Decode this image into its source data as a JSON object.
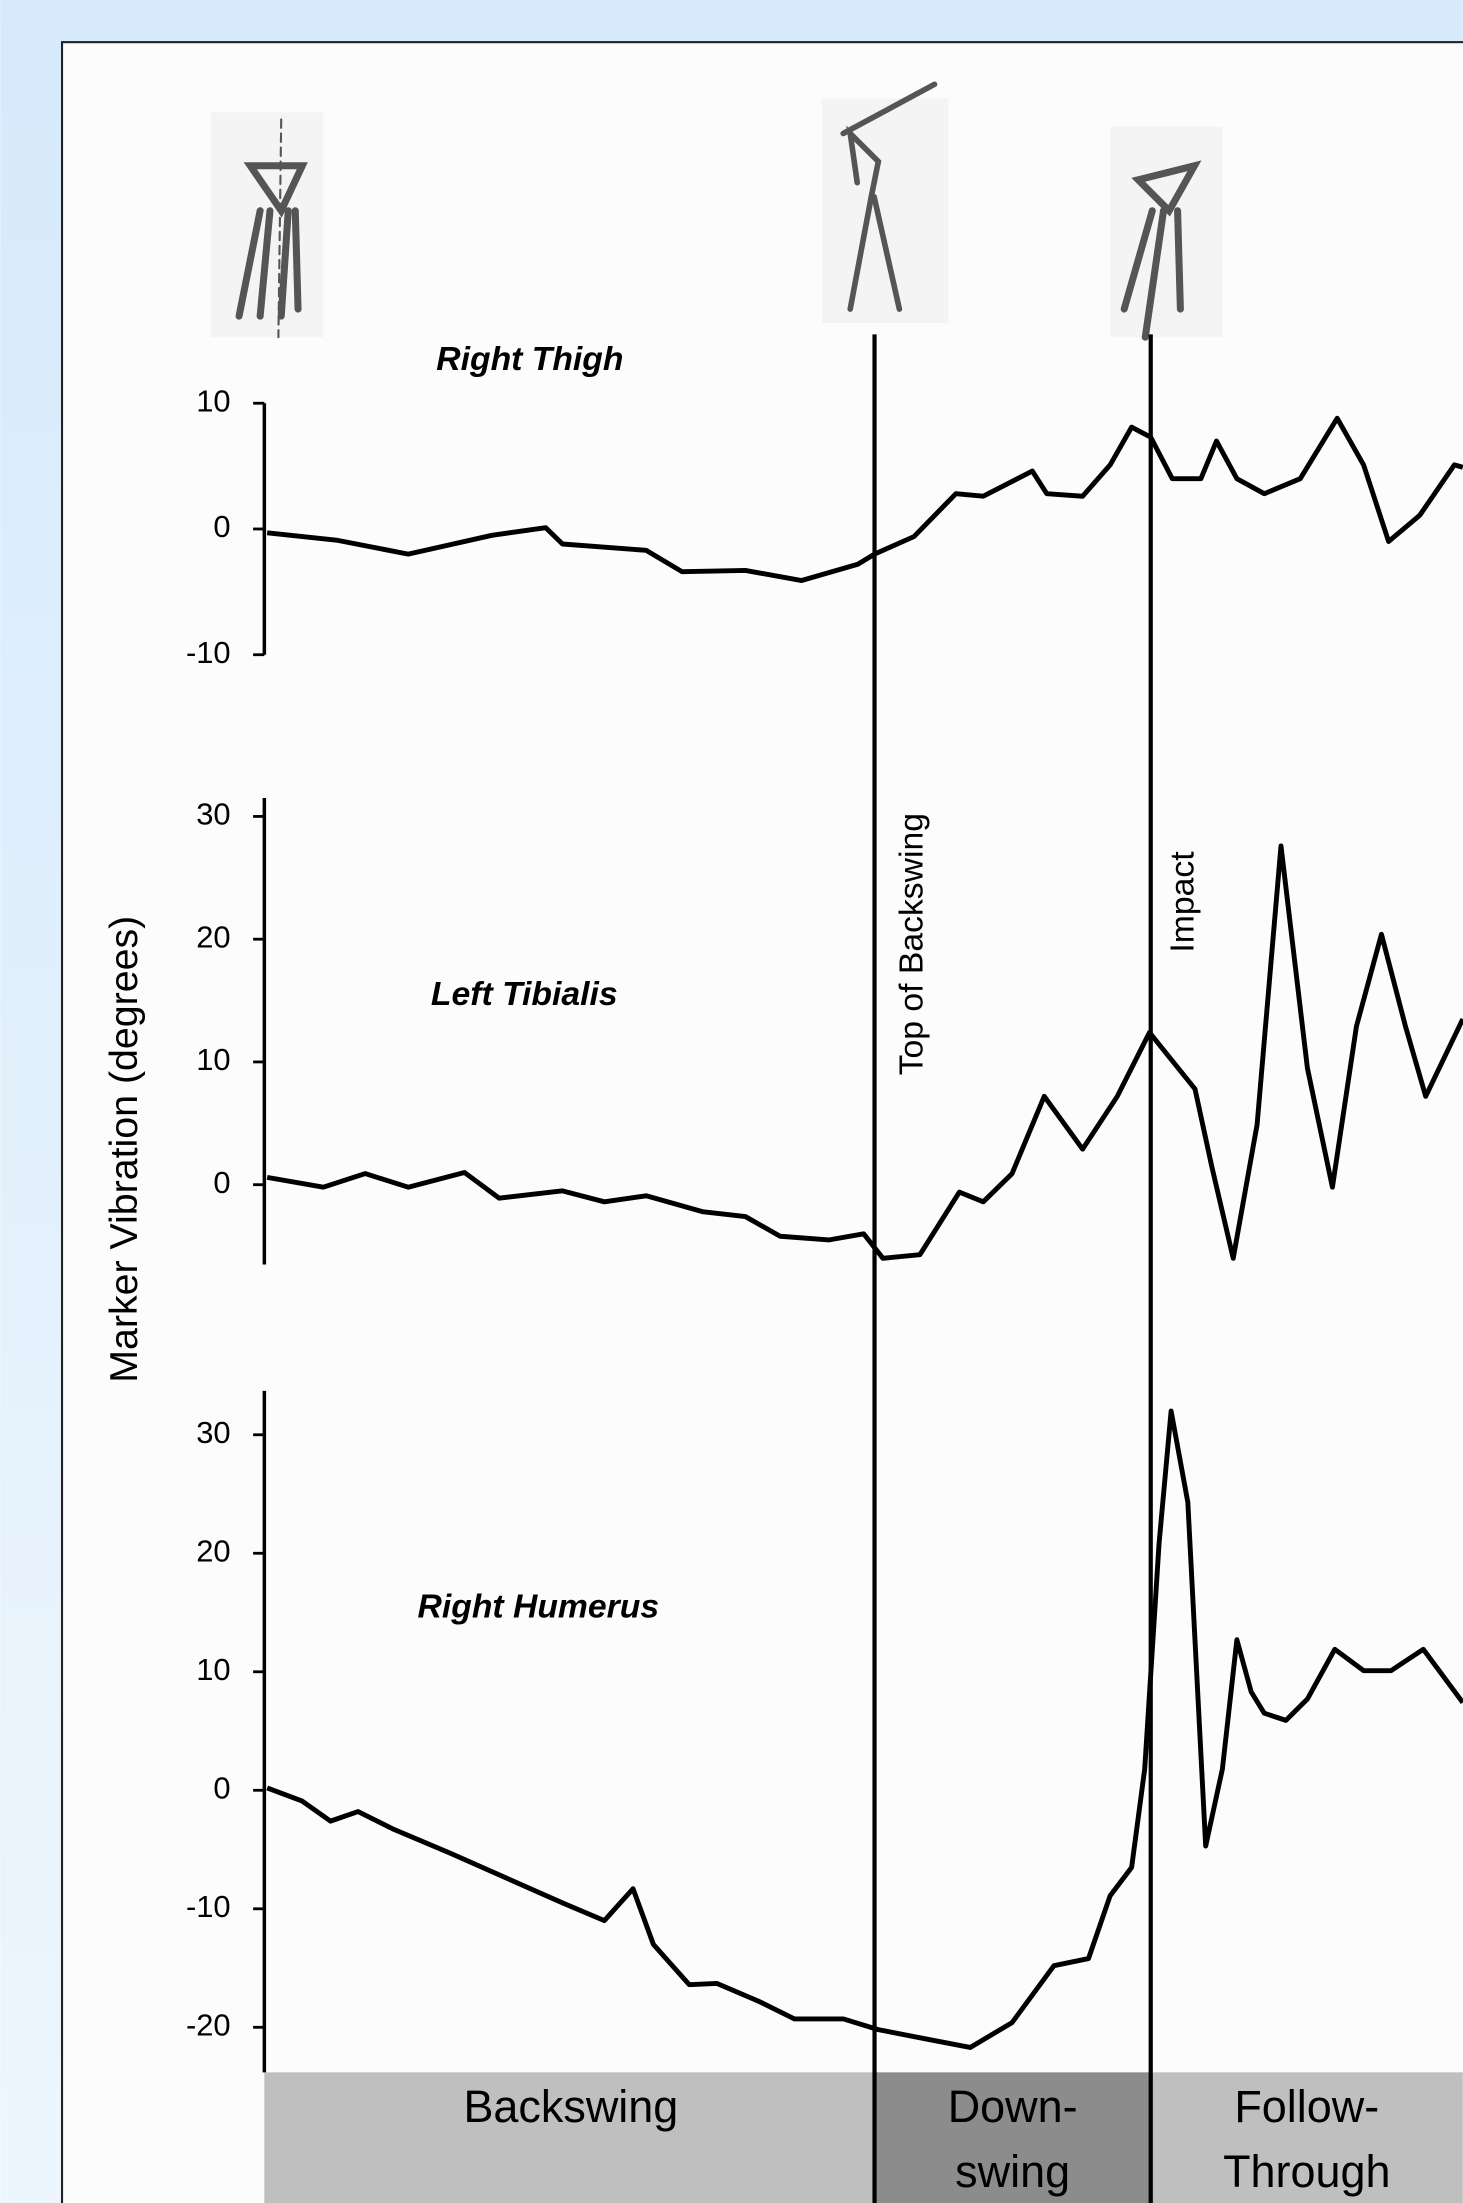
{
  "y_axis_label": "Marker Vibration (degrees)",
  "timeline": {
    "xlim": [
      0,
      100
    ],
    "markers": [
      {
        "text": "Top of Backswing",
        "x": 50.8
      },
      {
        "text": "Impact",
        "x": 73.9
      }
    ],
    "phases": [
      {
        "lines": [
          "Backswing"
        ],
        "start": 0,
        "end": 50.8,
        "color": "#bfbfbf"
      },
      {
        "lines": [
          "Down-",
          "swing"
        ],
        "start": 50.8,
        "end": 73.9,
        "color": "#8c8c8c"
      },
      {
        "lines": [
          "Follow-",
          "Through"
        ],
        "start": 73.9,
        "end": 100,
        "color": "#bfbfbf"
      }
    ]
  },
  "chart_data": [
    {
      "type": "line",
      "title": "Right Thigh",
      "color": "#000000",
      "xlim": [
        0,
        100
      ],
      "ylim": [
        -10,
        10
      ],
      "yticks": [
        -10,
        0,
        10
      ],
      "x": [
        0,
        5.9,
        11.8,
        18.8,
        23.3,
        24.7,
        31.7,
        34.7,
        40,
        44.7,
        49.4,
        50.8,
        54.1,
        57.6,
        59.9,
        64,
        65.2,
        68.2,
        70.5,
        72.3,
        73.9,
        75.7,
        78.1,
        79.4,
        81.1,
        83.4,
        86.4,
        89.5,
        91.7,
        93.8,
        96.4,
        99.3,
        100
      ],
      "values": [
        -0.3,
        -0.9,
        -2,
        -0.5,
        0.1,
        -1.2,
        -1.7,
        -3.4,
        -3.3,
        -4.1,
        -2.8,
        -2,
        -0.6,
        2.8,
        2.6,
        4.6,
        2.8,
        2.6,
        5.1,
        8.1,
        7.3,
        4,
        4,
        7,
        4,
        2.8,
        4,
        8.8,
        5.1,
        -1,
        1.1,
        5.1,
        4.9
      ]
    },
    {
      "type": "line",
      "title": "Left Tibialis",
      "color": "#000000",
      "xlim": [
        0,
        100
      ],
      "ylim": [
        -6.5,
        31.5
      ],
      "yticks": [
        0,
        10,
        20,
        30
      ],
      "x": [
        0,
        4.7,
        8.2,
        11.8,
        16.5,
        19.4,
        24.7,
        28.2,
        31.7,
        36.4,
        40,
        42.9,
        47,
        49.9,
        51.5,
        54.6,
        57.9,
        59.9,
        62.3,
        65,
        68.2,
        71.1,
        73.8,
        77.6,
        79,
        80.8,
        82.8,
        84.8,
        87,
        89.1,
        91.1,
        93.2,
        95.2,
        96.9,
        100
      ],
      "values": [
        0.6,
        -0.2,
        0.9,
        -0.2,
        1,
        -1.1,
        -0.5,
        -1.4,
        -0.9,
        -2.2,
        -2.6,
        -4.2,
        -4.5,
        -4,
        -6,
        -5.7,
        -0.6,
        -1.4,
        0.9,
        7.2,
        2.9,
        7.2,
        12.4,
        7.8,
        1.5,
        -6,
        4.9,
        27.6,
        9.5,
        -0.2,
        12.9,
        20.4,
        12.9,
        7.2,
        13.5
      ]
    },
    {
      "type": "line",
      "title": "Right Humerus",
      "color": "#000000",
      "xlim": [
        0,
        100
      ],
      "ylim": [
        -23.8,
        33.7
      ],
      "yticks": [
        -20,
        -10,
        0,
        10,
        20,
        30
      ],
      "x": [
        0,
        2.9,
        5.3,
        7.6,
        10.6,
        15.3,
        20,
        24.7,
        28.2,
        30.6,
        32.3,
        35.3,
        37.6,
        41.1,
        44.1,
        48.2,
        51.1,
        55.2,
        58.8,
        62.3,
        65.8,
        68.7,
        70.5,
        72.3,
        73.4,
        74.6,
        75.6,
        77,
        78.5,
        79.9,
        81.1,
        82.3,
        83.4,
        85.2,
        87,
        89.3,
        91.7,
        94,
        96.7,
        100
      ],
      "values": [
        0.2,
        -0.9,
        -2.6,
        -1.8,
        -3.3,
        -5.3,
        -7.4,
        -9.5,
        -11,
        -8.3,
        -13,
        -16.4,
        -16.3,
        -17.8,
        -19.3,
        -19.3,
        -20.2,
        -21,
        -21.7,
        -19.6,
        -14.8,
        -14.2,
        -8.9,
        -6.5,
        1.8,
        20.8,
        32,
        24.3,
        -4.7,
        1.8,
        12.7,
        8.3,
        6.5,
        5.9,
        7.7,
        11.9,
        10.1,
        10.1,
        11.9,
        7.4
      ]
    }
  ]
}
